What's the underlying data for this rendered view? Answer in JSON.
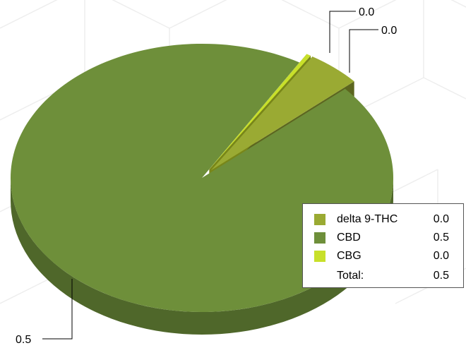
{
  "chart_data": {
    "type": "pie",
    "title": "",
    "style": "3d-exploded",
    "slices": [
      {
        "name": "delta 9-THC",
        "value": 0.024,
        "label": "0.0",
        "color": "#9aaa33"
      },
      {
        "name": "CBD",
        "value": 0.5,
        "label": "0.5",
        "color": "#6e8f3a"
      },
      {
        "name": "CBG",
        "value": 0.002,
        "label": "0.0",
        "color": "#c8e02a"
      }
    ],
    "legend": {
      "placement": "bottom-right",
      "rows": [
        {
          "name": "delta 9-THC",
          "value": "0.0",
          "color": "#9aaa33"
        },
        {
          "name": "CBD",
          "value": "0.5",
          "color": "#6e8f3a"
        },
        {
          "name": "CBG",
          "value": "0.0",
          "color": "#c8e02a"
        },
        {
          "name": "Total:",
          "value": "0.5"
        }
      ]
    }
  }
}
